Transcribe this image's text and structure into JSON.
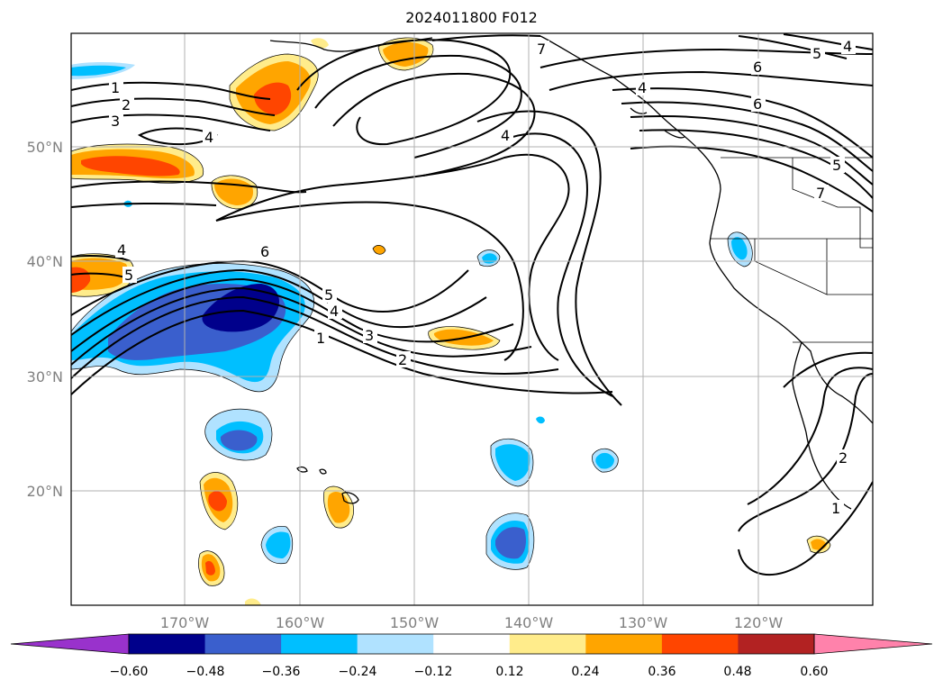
{
  "map": {
    "title": "2024011800 F012",
    "lat_labels": [
      "50°N",
      "40°N",
      "30°N",
      "20°N"
    ],
    "lon_labels": [
      "170°W",
      "160°W",
      "150°W",
      "140°W",
      "130°W",
      "120°W"
    ]
  },
  "colorbar": {
    "ticks": [
      "−0.60",
      "−0.48",
      "−0.36",
      "−0.24",
      "−0.12",
      "0.12",
      "0.24",
      "0.36",
      "0.48",
      "0.60"
    ],
    "colors": [
      "#9932cc",
      "#00008b",
      "#3a5fcd",
      "#00bfff",
      "#b0e2ff",
      "#ffffff",
      "#ffec8b",
      "#ffa500",
      "#ff4500",
      "#b22222",
      "#ff82ab"
    ]
  },
  "contour_labels": [
    "1",
    "2",
    "3",
    "4",
    "6",
    "4",
    "5",
    "4",
    "3",
    "2",
    "1",
    "4",
    "5",
    "6",
    "6",
    "5",
    "4",
    "4",
    "5",
    "7",
    "7",
    "2",
    "1"
  ]
}
